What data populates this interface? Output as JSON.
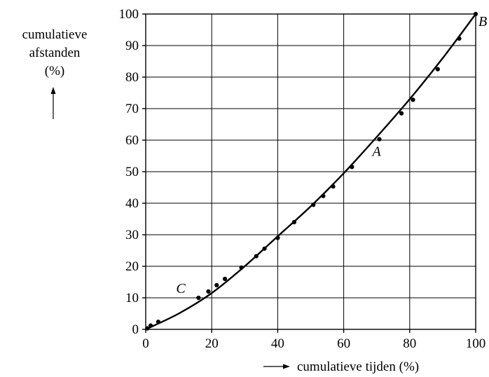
{
  "chart_data": {
    "type": "scatter",
    "xlabel": "cumulatieve tijden (%)",
    "ylabel": [
      "cumulatieve",
      "afstanden",
      "(%)"
    ],
    "xlim": [
      0,
      100
    ],
    "ylim": [
      0,
      100
    ],
    "x_ticks": [
      0,
      20,
      40,
      60,
      80,
      100
    ],
    "y_ticks": [
      0,
      10,
      20,
      30,
      40,
      50,
      60,
      70,
      80,
      90,
      100
    ],
    "grid": true,
    "points": [
      {
        "x": 0.5,
        "y": 0.3
      },
      {
        "x": 1.5,
        "y": 1.2
      },
      {
        "x": 3.8,
        "y": 2.4
      },
      {
        "x": 16.0,
        "y": 10.0
      },
      {
        "x": 19.0,
        "y": 12.0
      },
      {
        "x": 21.5,
        "y": 14.0
      },
      {
        "x": 24.0,
        "y": 16.0
      },
      {
        "x": 29.0,
        "y": 19.6
      },
      {
        "x": 33.5,
        "y": 23.2
      },
      {
        "x": 36.0,
        "y": 25.6
      },
      {
        "x": 40.0,
        "y": 29.0
      },
      {
        "x": 45.0,
        "y": 34.0
      },
      {
        "x": 50.8,
        "y": 39.5
      },
      {
        "x": 53.8,
        "y": 42.3
      },
      {
        "x": 56.8,
        "y": 45.3
      },
      {
        "x": 62.5,
        "y": 51.5
      },
      {
        "x": 70.8,
        "y": 60.3
      },
      {
        "x": 77.5,
        "y": 68.5
      },
      {
        "x": 81.0,
        "y": 72.8
      },
      {
        "x": 88.5,
        "y": 82.5
      },
      {
        "x": 95.0,
        "y": 92.2
      },
      {
        "x": 100.0,
        "y": 100.0
      }
    ],
    "curve": {
      "x": [
        0,
        10,
        20,
        30,
        40,
        50,
        60,
        70,
        80,
        90,
        100
      ],
      "y": [
        0,
        5.0,
        11.5,
        20.0,
        29.5,
        39.0,
        49.5,
        61.0,
        73.0,
        86.0,
        100.0
      ]
    },
    "annotations": [
      {
        "text": "A",
        "x": 70.8,
        "y": 60.3
      },
      {
        "text": "B",
        "x": 100.0,
        "y": 100.0
      },
      {
        "text": "C",
        "x": 16.0,
        "y": 10.0
      }
    ]
  }
}
